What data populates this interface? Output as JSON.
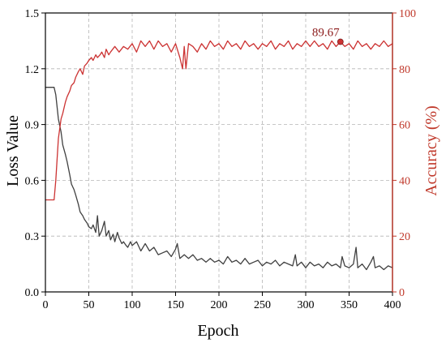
{
  "chart_data": {
    "type": "line",
    "xlabel": "Epoch",
    "ylabel_left": "Loss Value",
    "ylabel_right": "Accuracy (%)",
    "xlim": [
      0,
      400
    ],
    "ylim_left": [
      0,
      1.5
    ],
    "ylim_right": [
      0,
      100
    ],
    "xticks": [
      "0",
      "50",
      "100",
      "150",
      "200",
      "250",
      "300",
      "350",
      "400"
    ],
    "yticks_left": [
      "0.0",
      "0.3",
      "0.6",
      "0.9",
      "1.2",
      "1.5"
    ],
    "yticks_right": [
      "0",
      "20",
      "40",
      "60",
      "80",
      "100"
    ],
    "grid": true,
    "colors": {
      "loss": "#404040",
      "accuracy": "#cc3333",
      "axis_right": "#c0392b"
    },
    "annotation": {
      "text": "89.67",
      "x": 340,
      "y": 89.67,
      "axis": "right"
    },
    "series": [
      {
        "axis": "left",
        "points": [
          [
            0,
            1.1
          ],
          [
            5,
            1.1
          ],
          [
            10,
            1.1
          ],
          [
            12,
            1.06
          ],
          [
            15,
            0.93
          ],
          [
            18,
            0.86
          ],
          [
            20,
            0.79
          ],
          [
            23,
            0.74
          ],
          [
            25,
            0.7
          ],
          [
            28,
            0.63
          ],
          [
            30,
            0.58
          ],
          [
            33,
            0.55
          ],
          [
            35,
            0.52
          ],
          [
            38,
            0.47
          ],
          [
            40,
            0.43
          ],
          [
            43,
            0.41
          ],
          [
            45,
            0.39
          ],
          [
            48,
            0.37
          ],
          [
            50,
            0.35
          ],
          [
            53,
            0.34
          ],
          [
            55,
            0.36
          ],
          [
            58,
            0.32
          ],
          [
            60,
            0.41
          ],
          [
            62,
            0.3
          ],
          [
            65,
            0.33
          ],
          [
            68,
            0.38
          ],
          [
            70,
            0.3
          ],
          [
            73,
            0.33
          ],
          [
            75,
            0.28
          ],
          [
            78,
            0.31
          ],
          [
            80,
            0.27
          ],
          [
            83,
            0.32
          ],
          [
            85,
            0.29
          ],
          [
            88,
            0.26
          ],
          [
            90,
            0.27
          ],
          [
            93,
            0.25
          ],
          [
            95,
            0.24
          ],
          [
            98,
            0.27
          ],
          [
            100,
            0.25
          ],
          [
            105,
            0.27
          ],
          [
            110,
            0.22
          ],
          [
            115,
            0.26
          ],
          [
            120,
            0.22
          ],
          [
            125,
            0.24
          ],
          [
            130,
            0.2
          ],
          [
            135,
            0.21
          ],
          [
            140,
            0.22
          ],
          [
            145,
            0.19
          ],
          [
            150,
            0.23
          ],
          [
            152,
            0.26
          ],
          [
            155,
            0.18
          ],
          [
            160,
            0.2
          ],
          [
            165,
            0.18
          ],
          [
            170,
            0.2
          ],
          [
            175,
            0.17
          ],
          [
            180,
            0.18
          ],
          [
            185,
            0.16
          ],
          [
            190,
            0.18
          ],
          [
            195,
            0.16
          ],
          [
            200,
            0.17
          ],
          [
            205,
            0.15
          ],
          [
            210,
            0.19
          ],
          [
            215,
            0.16
          ],
          [
            220,
            0.17
          ],
          [
            225,
            0.15
          ],
          [
            230,
            0.18
          ],
          [
            235,
            0.15
          ],
          [
            240,
            0.16
          ],
          [
            245,
            0.17
          ],
          [
            250,
            0.14
          ],
          [
            255,
            0.16
          ],
          [
            260,
            0.15
          ],
          [
            265,
            0.17
          ],
          [
            270,
            0.14
          ],
          [
            275,
            0.16
          ],
          [
            280,
            0.15
          ],
          [
            285,
            0.14
          ],
          [
            288,
            0.2
          ],
          [
            290,
            0.14
          ],
          [
            295,
            0.16
          ],
          [
            300,
            0.13
          ],
          [
            305,
            0.16
          ],
          [
            310,
            0.14
          ],
          [
            315,
            0.15
          ],
          [
            320,
            0.13
          ],
          [
            325,
            0.16
          ],
          [
            330,
            0.14
          ],
          [
            335,
            0.15
          ],
          [
            340,
            0.13
          ],
          [
            342,
            0.19
          ],
          [
            345,
            0.14
          ],
          [
            350,
            0.13
          ],
          [
            355,
            0.15
          ],
          [
            358,
            0.24
          ],
          [
            360,
            0.13
          ],
          [
            365,
            0.15
          ],
          [
            370,
            0.12
          ],
          [
            375,
            0.16
          ],
          [
            378,
            0.19
          ],
          [
            380,
            0.13
          ],
          [
            385,
            0.14
          ],
          [
            390,
            0.12
          ],
          [
            395,
            0.14
          ],
          [
            400,
            0.13
          ]
        ]
      },
      {
        "axis": "right",
        "points": [
          [
            0,
            33
          ],
          [
            5,
            33
          ],
          [
            10,
            33
          ],
          [
            12,
            40
          ],
          [
            15,
            55
          ],
          [
            18,
            62
          ],
          [
            20,
            64
          ],
          [
            23,
            68
          ],
          [
            25,
            70
          ],
          [
            28,
            72
          ],
          [
            30,
            74
          ],
          [
            33,
            75
          ],
          [
            35,
            77
          ],
          [
            38,
            79
          ],
          [
            40,
            80
          ],
          [
            43,
            78
          ],
          [
            45,
            81
          ],
          [
            48,
            82
          ],
          [
            50,
            83
          ],
          [
            53,
            84
          ],
          [
            55,
            83
          ],
          [
            58,
            85
          ],
          [
            60,
            84
          ],
          [
            63,
            85
          ],
          [
            65,
            86
          ],
          [
            68,
            84
          ],
          [
            70,
            87
          ],
          [
            73,
            85
          ],
          [
            75,
            86
          ],
          [
            80,
            88
          ],
          [
            85,
            86
          ],
          [
            90,
            88
          ],
          [
            95,
            87
          ],
          [
            100,
            89
          ],
          [
            105,
            86
          ],
          [
            110,
            90
          ],
          [
            115,
            88
          ],
          [
            120,
            90
          ],
          [
            125,
            87
          ],
          [
            130,
            90
          ],
          [
            135,
            88
          ],
          [
            140,
            89
          ],
          [
            145,
            86
          ],
          [
            150,
            89
          ],
          [
            155,
            84
          ],
          [
            158,
            80
          ],
          [
            160,
            88
          ],
          [
            162,
            80
          ],
          [
            165,
            89
          ],
          [
            170,
            88
          ],
          [
            175,
            86
          ],
          [
            180,
            89
          ],
          [
            185,
            87
          ],
          [
            190,
            90
          ],
          [
            195,
            88
          ],
          [
            200,
            89
          ],
          [
            205,
            87
          ],
          [
            210,
            90
          ],
          [
            215,
            88
          ],
          [
            220,
            89
          ],
          [
            225,
            87
          ],
          [
            230,
            90
          ],
          [
            235,
            88
          ],
          [
            240,
            89
          ],
          [
            245,
            87
          ],
          [
            250,
            89
          ],
          [
            255,
            88
          ],
          [
            260,
            90
          ],
          [
            265,
            87
          ],
          [
            270,
            89
          ],
          [
            275,
            88
          ],
          [
            280,
            90
          ],
          [
            285,
            87
          ],
          [
            290,
            89
          ],
          [
            295,
            88
          ],
          [
            300,
            90
          ],
          [
            305,
            88
          ],
          [
            310,
            90
          ],
          [
            315,
            88
          ],
          [
            320,
            89
          ],
          [
            325,
            87
          ],
          [
            330,
            90
          ],
          [
            335,
            88
          ],
          [
            340,
            89.67
          ],
          [
            345,
            88
          ],
          [
            350,
            89
          ],
          [
            355,
            87
          ],
          [
            360,
            90
          ],
          [
            365,
            88
          ],
          [
            370,
            89
          ],
          [
            375,
            87
          ],
          [
            380,
            89
          ],
          [
            385,
            88
          ],
          [
            390,
            90
          ],
          [
            395,
            88
          ],
          [
            400,
            89
          ]
        ]
      }
    ]
  }
}
